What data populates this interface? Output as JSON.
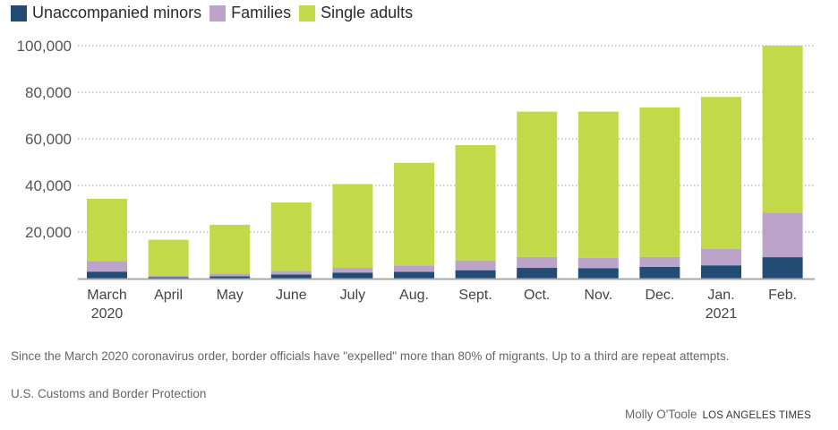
{
  "chart_data": {
    "type": "bar",
    "stacked": true,
    "title": "",
    "xlabel": "",
    "ylabel": "",
    "ylim": [
      0,
      100000
    ],
    "yticks": [
      20000,
      40000,
      60000,
      80000,
      100000
    ],
    "ytick_labels": [
      "20,000",
      "40,000",
      "60,000",
      "80,000",
      "100,000"
    ],
    "grid": true,
    "legend_position": "top-left",
    "categories": [
      "March 2020",
      "April",
      "May",
      "June",
      "July",
      "Aug.",
      "Sept.",
      "Oct.",
      "Nov.",
      "Dec.",
      "Jan. 2021",
      "Feb."
    ],
    "category_labels": [
      [
        "March",
        "2020"
      ],
      [
        "April"
      ],
      [
        "May"
      ],
      [
        "June"
      ],
      [
        "July"
      ],
      [
        "Aug."
      ],
      [
        "Sept."
      ],
      [
        "Oct."
      ],
      [
        "Nov."
      ],
      [
        "Dec."
      ],
      [
        "Jan.",
        "2021"
      ],
      [
        "Feb."
      ]
    ],
    "series": [
      {
        "name": "Unaccompanied minors",
        "color": "#234c74",
        "values": [
          3000,
          600,
          1000,
          1800,
          2600,
          2900,
          3600,
          4600,
          4500,
          5000,
          5700,
          9200
        ]
      },
      {
        "name": "Families",
        "color": "#bba3c9",
        "values": [
          4600,
          700,
          1100,
          1500,
          2000,
          2800,
          4200,
          4700,
          4400,
          4300,
          7000,
          19100
        ]
      },
      {
        "name": "Single adults",
        "color": "#c2d94a",
        "values": [
          26700,
          15400,
          21000,
          29400,
          36000,
          44000,
          49500,
          62400,
          62800,
          64200,
          65300,
          71700
        ]
      }
    ]
  },
  "legend": [
    {
      "label": "Unaccompanied minors",
      "color": "#234c74"
    },
    {
      "label": "Families",
      "color": "#bba3c9"
    },
    {
      "label": "Single adults",
      "color": "#c2d94a"
    }
  ],
  "footer": {
    "note": "Since the March 2020 coronavirus order, border officials have \"expelled\" more than 80% of migrants. Up to a third are repeat attempts.",
    "source": "U.S. Customs and Border Protection",
    "author": "Molly O'Toole",
    "organization": "LOS ANGELES TIMES"
  }
}
